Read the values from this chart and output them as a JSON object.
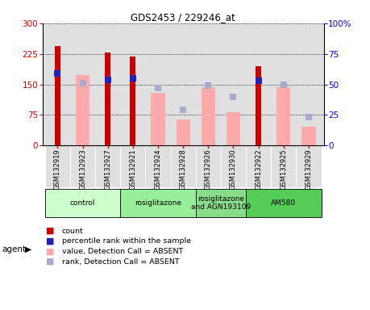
{
  "title": "GDS2453 / 229246_at",
  "samples": [
    "GSM132919",
    "GSM132923",
    "GSM132927",
    "GSM132921",
    "GSM132924",
    "GSM132928",
    "GSM132926",
    "GSM132930",
    "GSM132922",
    "GSM132925",
    "GSM132929"
  ],
  "red_bars": [
    245,
    0,
    228,
    218,
    0,
    0,
    0,
    0,
    195,
    0,
    0
  ],
  "pink_bars": [
    0,
    172,
    0,
    0,
    130,
    65,
    143,
    82,
    0,
    143,
    47
  ],
  "blue_pct": [
    59,
    0,
    54,
    55,
    0,
    0,
    0,
    0,
    53,
    0,
    0
  ],
  "lavender_pct": [
    0,
    51,
    0,
    0,
    47,
    29,
    49,
    40,
    0,
    50,
    23
  ],
  "ylim_left": [
    0,
    300
  ],
  "ylim_right": [
    0,
    100
  ],
  "yticks_left": [
    0,
    75,
    150,
    225,
    300
  ],
  "yticks_right": [
    0,
    25,
    50,
    75,
    100
  ],
  "ytick_labels_left": [
    "0",
    "75",
    "150",
    "225",
    "300"
  ],
  "ytick_labels_right": [
    "0",
    "25",
    "50",
    "75",
    "100%"
  ],
  "groups": [
    {
      "label": "control",
      "start": 0,
      "end": 3,
      "color": "#ccffcc"
    },
    {
      "label": "rosiglitazone",
      "start": 3,
      "end": 6,
      "color": "#99ee99"
    },
    {
      "label": "rosiglitazone\nand AGN193109",
      "start": 6,
      "end": 8,
      "color": "#88dd88"
    },
    {
      "label": "AM580",
      "start": 8,
      "end": 11,
      "color": "#55cc55"
    }
  ],
  "legend": [
    {
      "color": "#cc0000",
      "label": "count"
    },
    {
      "color": "#2222bb",
      "label": "percentile rank within the sample"
    },
    {
      "color": "#ffaaaa",
      "label": "value, Detection Call = ABSENT"
    },
    {
      "color": "#aaaacc",
      "label": "rank, Detection Call = ABSENT"
    }
  ],
  "red_color": "#cc0000",
  "pink_color": "#ffaaaa",
  "blue_color": "#2222bb",
  "lavender_color": "#aaaacc",
  "bg_plot": "#e0e0e0",
  "agent_label": "agent"
}
